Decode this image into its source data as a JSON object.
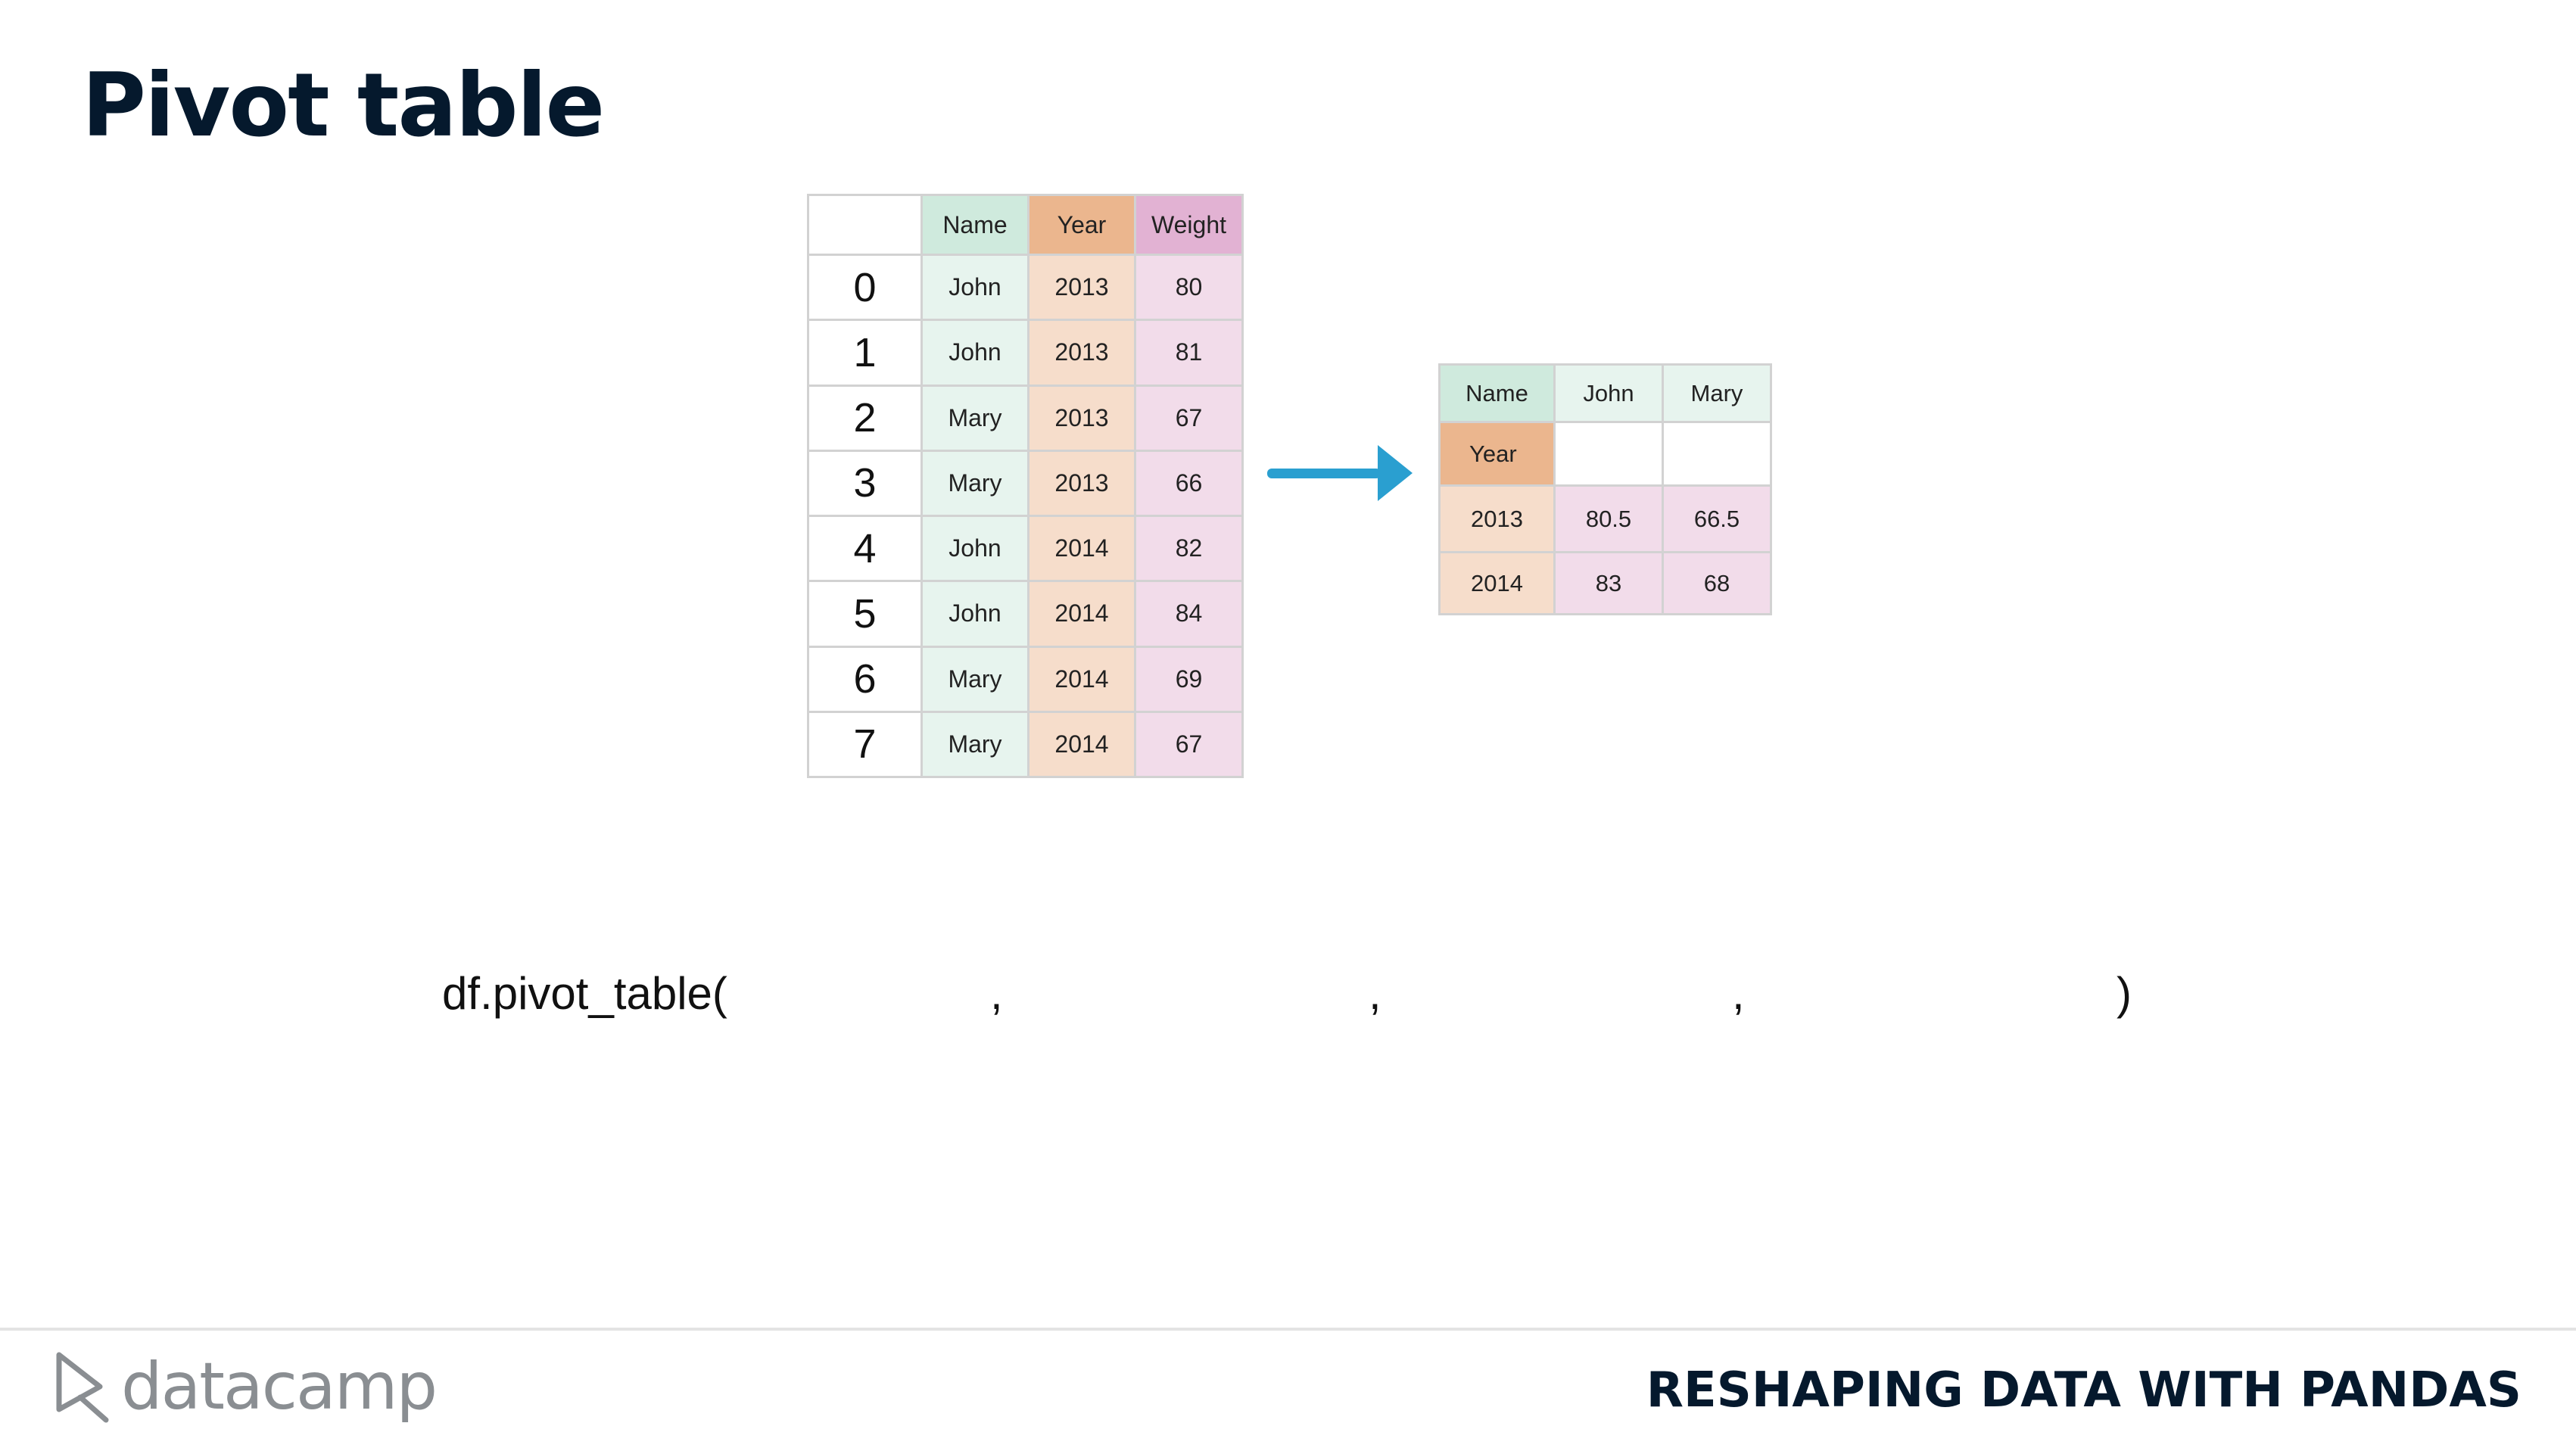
{
  "title": "Pivot table",
  "source_table": {
    "headers": [
      "Name",
      "Year",
      "Weight"
    ],
    "rows": [
      {
        "index": "0",
        "name": "John",
        "year": "2013",
        "weight": "80"
      },
      {
        "index": "1",
        "name": "John",
        "year": "2013",
        "weight": "81"
      },
      {
        "index": "2",
        "name": "Mary",
        "year": "2013",
        "weight": "67"
      },
      {
        "index": "3",
        "name": "Mary",
        "year": "2013",
        "weight": "66"
      },
      {
        "index": "4",
        "name": "John",
        "year": "2014",
        "weight": "82"
      },
      {
        "index": "5",
        "name": "John",
        "year": "2014",
        "weight": "84"
      },
      {
        "index": "6",
        "name": "Mary",
        "year": "2014",
        "weight": "69"
      },
      {
        "index": "7",
        "name": "Mary",
        "year": "2014",
        "weight": "67"
      }
    ]
  },
  "pivot_table": {
    "columns_label": "Name",
    "columns": [
      "John",
      "Mary"
    ],
    "index_label": "Year",
    "rows": [
      {
        "year": "2013",
        "values": [
          "80.5",
          "66.5"
        ]
      },
      {
        "year": "2014",
        "values": [
          "83",
          "68"
        ]
      }
    ]
  },
  "code": {
    "prefix": "df.pivot_table(",
    "separator": ",",
    "suffix": ")"
  },
  "footer": {
    "logo_text": "datacamp",
    "course_title": "RESHAPING DATA WITH PANDAS"
  },
  "colors": {
    "name_header": "#cfeadd",
    "year_header": "#ebb68e",
    "weight_header": "#e2b2d3",
    "arrow": "#2a9fd0"
  }
}
